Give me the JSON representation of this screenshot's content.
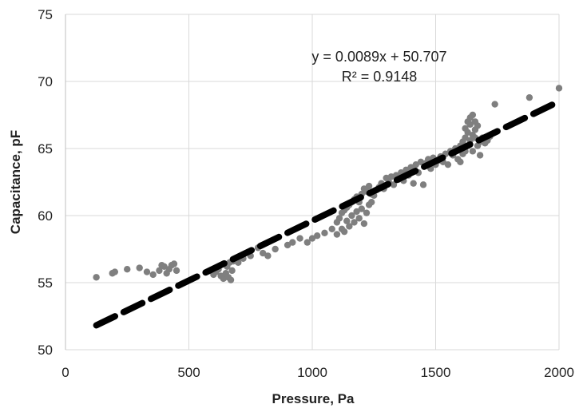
{
  "chart_data": {
    "type": "scatter",
    "title": "",
    "xlabel": "Pressure, Pa",
    "ylabel": "Capacitance, pF",
    "xlim": [
      0,
      2000
    ],
    "ylim": [
      50,
      75
    ],
    "xticks": [
      0,
      500,
      1000,
      1500,
      2000
    ],
    "yticks": [
      50,
      55,
      60,
      65,
      70,
      75
    ],
    "grid": true,
    "legend": "none",
    "colors": {
      "points": "#7f7f7f",
      "trendline": "#000000",
      "grid": "#d9d9d9",
      "axis": "#bfbfbf"
    },
    "trendline": {
      "slope": 0.0089,
      "intercept": 50.707,
      "style": "dashed",
      "x_range": [
        125,
        2000
      ]
    },
    "annotations": [
      "y = 0.0089x + 50.707",
      "R² = 0.9148"
    ],
    "series": [
      {
        "points": [
          [
            125,
            55.4
          ],
          [
            190,
            55.7
          ],
          [
            200,
            55.8
          ],
          [
            250,
            56.0
          ],
          [
            300,
            56.1
          ],
          [
            330,
            55.8
          ],
          [
            355,
            55.6
          ],
          [
            380,
            55.9
          ],
          [
            390,
            56.3
          ],
          [
            400,
            56.2
          ],
          [
            410,
            55.7
          ],
          [
            420,
            56.0
          ],
          [
            430,
            56.3
          ],
          [
            440,
            56.4
          ],
          [
            450,
            55.9
          ],
          [
            600,
            55.6
          ],
          [
            610,
            55.8
          ],
          [
            620,
            56.0
          ],
          [
            630,
            55.5
          ],
          [
            640,
            55.3
          ],
          [
            650,
            55.7
          ],
          [
            655,
            56.2
          ],
          [
            660,
            55.4
          ],
          [
            665,
            56.5
          ],
          [
            670,
            55.2
          ],
          [
            675,
            55.9
          ],
          [
            680,
            56.6
          ],
          [
            700,
            56.5
          ],
          [
            720,
            56.8
          ],
          [
            750,
            57.0
          ],
          [
            780,
            57.6
          ],
          [
            800,
            57.2
          ],
          [
            820,
            57.0
          ],
          [
            850,
            57.5
          ],
          [
            900,
            57.8
          ],
          [
            920,
            58.0
          ],
          [
            950,
            58.3
          ],
          [
            980,
            58.0
          ],
          [
            1000,
            58.3
          ],
          [
            1020,
            58.5
          ],
          [
            1050,
            58.7
          ],
          [
            1080,
            59.0
          ],
          [
            1100,
            59.5
          ],
          [
            1100,
            58.6
          ],
          [
            1110,
            59.8
          ],
          [
            1120,
            60.2
          ],
          [
            1120,
            59.0
          ],
          [
            1130,
            60.4
          ],
          [
            1130,
            58.8
          ],
          [
            1140,
            60.6
          ],
          [
            1140,
            59.6
          ],
          [
            1150,
            60.8
          ],
          [
            1150,
            59.2
          ],
          [
            1160,
            61.0
          ],
          [
            1160,
            60.0
          ],
          [
            1170,
            61.2
          ],
          [
            1170,
            59.5
          ],
          [
            1180,
            61.4
          ],
          [
            1180,
            60.3
          ],
          [
            1190,
            61.0
          ],
          [
            1190,
            59.8
          ],
          [
            1200,
            61.6
          ],
          [
            1200,
            60.5
          ],
          [
            1210,
            62.0
          ],
          [
            1210,
            59.4
          ],
          [
            1220,
            61.8
          ],
          [
            1220,
            60.2
          ],
          [
            1230,
            62.2
          ],
          [
            1230,
            60.8
          ],
          [
            1240,
            61.0
          ],
          [
            1240,
            61.6
          ],
          [
            1250,
            61.5
          ],
          [
            1260,
            61.9
          ],
          [
            1270,
            62.1
          ],
          [
            1280,
            62.4
          ],
          [
            1290,
            62.0
          ],
          [
            1300,
            62.8
          ],
          [
            1310,
            62.5
          ],
          [
            1320,
            62.9
          ],
          [
            1330,
            62.3
          ],
          [
            1340,
            63.0
          ],
          [
            1350,
            62.7
          ],
          [
            1360,
            63.2
          ],
          [
            1370,
            62.6
          ],
          [
            1380,
            63.4
          ],
          [
            1390,
            63.0
          ],
          [
            1400,
            63.6
          ],
          [
            1410,
            62.4
          ],
          [
            1420,
            63.8
          ],
          [
            1430,
            63.2
          ],
          [
            1440,
            64.0
          ],
          [
            1450,
            62.3
          ],
          [
            1460,
            63.9
          ],
          [
            1470,
            64.2
          ],
          [
            1480,
            63.5
          ],
          [
            1490,
            64.3
          ],
          [
            1500,
            63.8
          ],
          [
            1510,
            64.1
          ],
          [
            1520,
            64.4
          ],
          [
            1530,
            64.0
          ],
          [
            1540,
            64.6
          ],
          [
            1550,
            63.8
          ],
          [
            1560,
            64.8
          ],
          [
            1570,
            64.5
          ],
          [
            1580,
            65.0
          ],
          [
            1590,
            64.2
          ],
          [
            1600,
            65.2
          ],
          [
            1600,
            64.0
          ],
          [
            1610,
            65.5
          ],
          [
            1610,
            64.6
          ],
          [
            1620,
            65.8
          ],
          [
            1620,
            66.5
          ],
          [
            1620,
            64.8
          ],
          [
            1630,
            66.2
          ],
          [
            1630,
            67.0
          ],
          [
            1630,
            65.2
          ],
          [
            1640,
            66.8
          ],
          [
            1640,
            67.3
          ],
          [
            1640,
            65.6
          ],
          [
            1650,
            67.5
          ],
          [
            1650,
            66.0
          ],
          [
            1650,
            64.8
          ],
          [
            1660,
            66.4
          ],
          [
            1660,
            67.0
          ],
          [
            1660,
            65.8
          ],
          [
            1670,
            65.2
          ],
          [
            1670,
            66.7
          ],
          [
            1680,
            65.5
          ],
          [
            1680,
            64.5
          ],
          [
            1690,
            65.8
          ],
          [
            1700,
            65.4
          ],
          [
            1710,
            65.6
          ],
          [
            1720,
            65.9
          ],
          [
            1740,
            68.3
          ],
          [
            1880,
            68.8
          ],
          [
            2000,
            69.5
          ]
        ]
      }
    ]
  }
}
